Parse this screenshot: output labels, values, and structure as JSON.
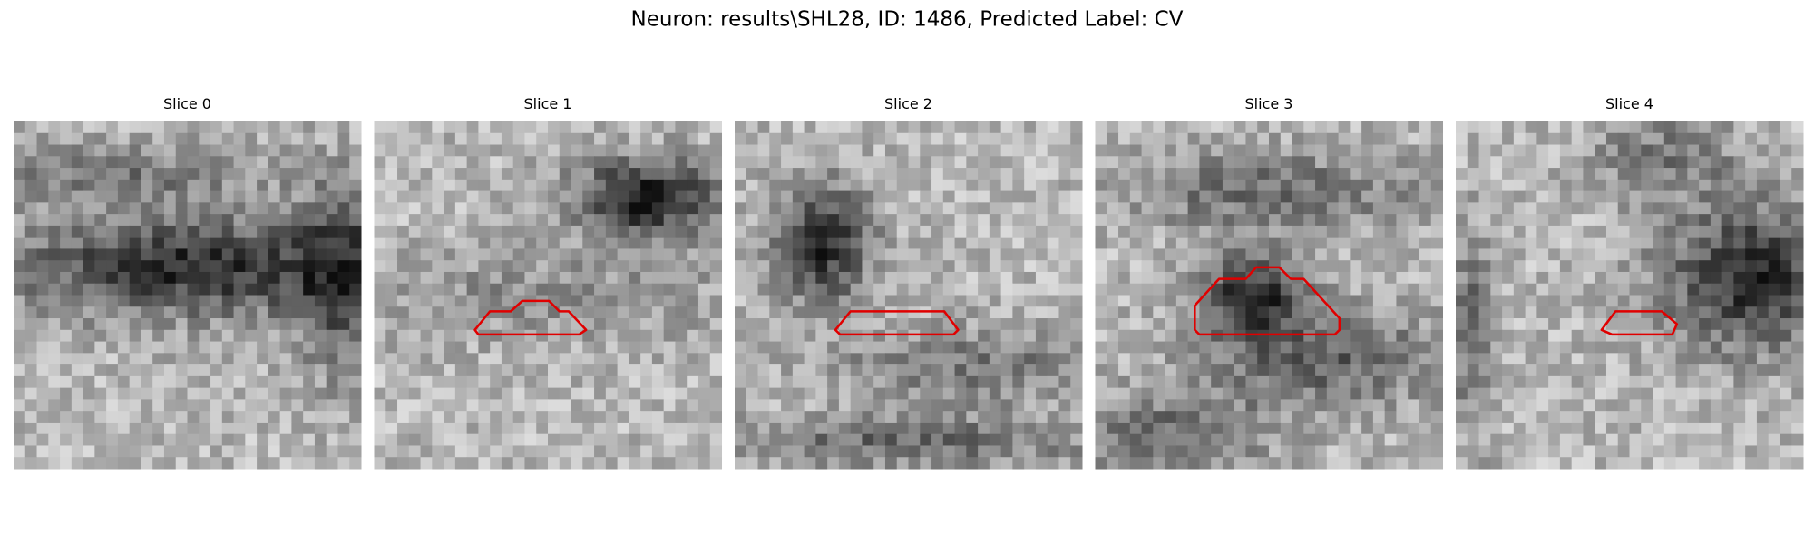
{
  "title": "Neuron: results\\SHL28, ID: 1486, Predicted Label: CV",
  "panels": [
    {
      "title": "Slice 0"
    },
    {
      "title": "Slice 1"
    },
    {
      "title": "Slice 2"
    },
    {
      "title": "Slice 3"
    },
    {
      "title": "Slice 4"
    }
  ]
}
